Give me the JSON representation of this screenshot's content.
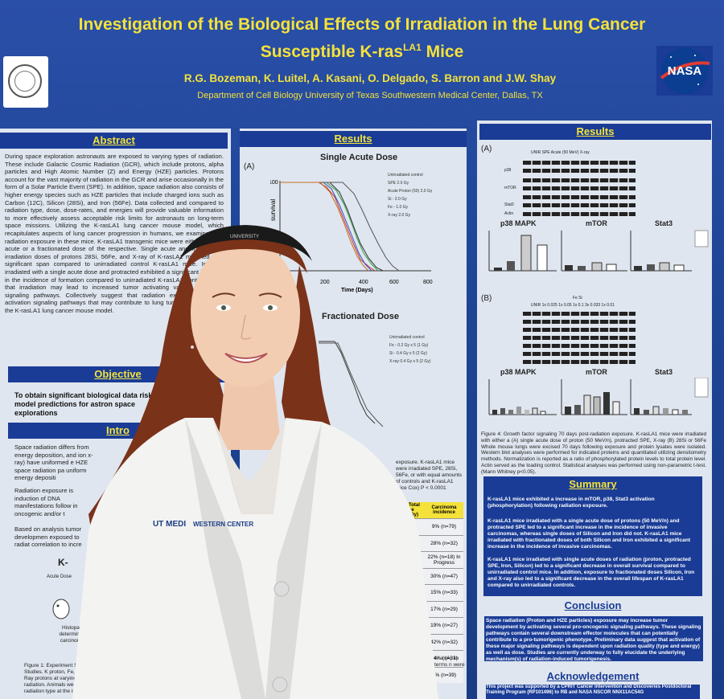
{
  "poster": {
    "title_line1": "Investigation of the Biological Effects of Irradiation in the Lung Cancer",
    "title_line2_pre": "Susceptible K-ras",
    "title_line2_sup": "LA1",
    "title_line2_post": " Mice",
    "authors": "R.G. Bozeman, K. Luitel, A. Kasani, O. Delgado, S. Barron and J.W. Shay",
    "department": "Department of Cell Biology University of Texas Southwestern Medical Center, Dallas, TX",
    "nasa_logo_text": "NASA"
  },
  "abstract": {
    "heading": "Abstract",
    "text": "During space exploration astronauts are exposed to varying types of radiation. These include Galactic Cosmic Radiation (GCR), which include protons, alpha particles and High Atomic Number (Z) and Energy (HZE) particles. Protons account for the vast majority of radiation in the GCR and arise occasionally in the form of a Solar Particle Event (SPE). In addition, space radiation also consists of higher energy species such as HZE particles that include charged ions such as Carbon (12C), Silicon (28Si), and Iron (56Fe). Data collected and compared to radiation type, dose, dose-rates, and energies will provide valuable information to more effectively assess acceptable risk limits for astronauts on long-term space missions. Utilizing the K-rasLA1 lung cancer mouse model, which recapitulates aspects of lung cancer progression in humans, we examined the radiation exposure in these mice. K-rasLA1 transgenic mice were either a single acute or a fractionated dose of the respective. Single acute and fractionated irradiation doses of protons 28Si, 56Fe, and X-ray of K-rasLA1 mice led to a significant span compared to unirradiated control K-rasLA1 mice. In mice irradiated with a single acute dose and protracted exhibited a significant increase in the incidence of formation compared to unirradiated K-rasLA1 controls show that irradiation may lead to increased tumor activating various mitogenic signaling pathways. Collectively suggest that radiation exposure leads to activation signaling pathways that may contribute to lung tumor progression in the K-rasLA1 lung cancer mouse model."
  },
  "objective": {
    "heading": "Objective",
    "text": "To obtain significant biological data risk model predictions for astron space explorations"
  },
  "introduction": {
    "heading": "Intro",
    "bullets": [
      "Space radiation differs from energy deposition, and ion x-ray) have uniformed e HZE space radiation pa uniform energy depositi",
      "Radiation exposure is induction of DNA manifestations follow in oncogenic and/or t",
      "Based on analysis tumor developmen exposed to radiat correlation to incre"
    ],
    "diagram_label": "K-",
    "acute_dose_label": "Acute Dose",
    "histo_text": "Histopa determine carcinom",
    "figure1_caption": "Figure 1: Experiment Simulation Studies. K proton, Fe, Si, or X-Ray protons at varying ener radiation. Animals were m radiation type at the indica"
  },
  "results_middle": {
    "heading": "Results",
    "panel_label": "(A)",
    "chart1_title": "Single Acute Dose",
    "chart1_ylabel": "survival",
    "chart1_xlabel": "Time (Days)",
    "chart2_title": "Fractionated Dose",
    "legend1": [
      "Unirradiated control",
      "SPE 2.0 Gy",
      "Acute Proton (50) 2.0 Gy",
      "Si - 2.0 Gy",
      "Fe - 1.0 Gy",
      "X-ray 2.0 Gy"
    ],
    "legend2": [
      "Unirradiated control",
      "Fe - 0.2 Gy x 5 (1 Gy)",
      "Si - 0.4 Gy x 5 (2 Gy)",
      "X-ray 0.4 Gy x 5 (2 Gy)"
    ],
    "caption_fragment": "exposure. K-rasLA1 mice were irradiated SPE, 28Si, 56Fe, or with equal amounts of controls and K-rasLA1 mice Cox) P < 0.0001",
    "table_headers": [
      "Total se (Gy)",
      "Carcinoma incidence"
    ],
    "table_rows": [
      "9% (n=79)",
      "28% (n=32)",
      "22% (n=18) In Progress",
      "30% (n=47)",
      "15% (n=33)",
      "17% (n=29)",
      "19% (n=27)",
      "42% (n=32)",
      "34% (n=31)",
      "9% (n=39)"
    ],
    "caption_bottom": "er a (A) lin terms n were"
  },
  "results_right": {
    "heading": "Results",
    "panel_a": "(A)",
    "panel_b": "(B)",
    "blot_header_a": "UNIR   SPE   Acute (50 MeV)   X-ray",
    "blot_labels": [
      "p38",
      "mTOR",
      "Stat3",
      "Actin"
    ],
    "bar_titles": [
      "p38 MAPK",
      "mTOR",
      "Stat3"
    ],
    "blot_header_b": "UNIR   1x 0.025  1x 0.05  1x 0.1  3x 0.033  1x 0.01",
    "blot_header_b_top": "Fe   Si",
    "figure4_caption": "Figure 4: Growth factor signaling 70 days post-radiation exposure. K-rasLA1 mice were irradiated with either a (A) single acute dose of proton (50 MeV/n), protracted SPE, X-ray (B) 28Si or 56Fe Whole mouse lungs were excised 70 days following exposure and protein lysates were isolated. Western blot analyses were performed for indicated proteins and quantitated utilizing densitometry methods. Normalization is reported as a ratio of phosphorylated protein levels to total protein level. Actin served as the loading control. Statistical analyses was performed using non-parametric t-test. (Mann Whitney p<0.05)."
  },
  "summary": {
    "heading": "Summary",
    "bullets": [
      "K-rasLA1 mice exhibited a increase in mTOR, p38, Stat3 activation (phosphorylation) following radiation exposure.",
      "K-rasLA1 mice irradiated with a single acute dose of protons (50 MeV/n) and protracted SPE led to a significant increase in the incidence of invasive carcinomas, whereas single doses of Silicon and Iron did not. K-rasLA1 mice irradiated with fractionated doses of both Silicon and Iron exhibited a significant increase in the incidence of invasive carcinomas.",
      "K-rasLA1 mice irradiated with single acute doses of radiation (proton, protracted SPE, Iron, Silicon) led to a significant decrease in overall survival compared to unirradiated control mice. In addition, exposure to fractionated doses Silicon, Iron and X-ray also led to a significant decrease in the overall lifespan of K-rasLA1 compared to unirradiated controls."
    ]
  },
  "conclusion": {
    "heading": "Conclusion",
    "text": "Space radiation (Proton and HZE particles) exposure may increase tumor development by activating several pro-oncogenic signaling pathways. These signaling pathways contain several downstream effector molecules that can potentially contribute to a pro-tumorigenic phenotype. Preliminary data suggest that activation of these major signaling pathways is dependent upon radiation quality (type and energy) as well as dose. Studies are currently underway to fully elucidate the underlying mechanism(s) of radiation-induced tumorigenesis."
  },
  "acknowledgement": {
    "heading": "Acknowledgement",
    "text": "This project was supported by a CPRIT Cancer Intervention and Discoveries Postdoctoral Training Program (RP101496) to RB and NASA NSCOR NNX11AC54G"
  },
  "chart_axis": {
    "ytick_top": "100",
    "xticks": [
      "200",
      "400",
      "600",
      "800"
    ]
  },
  "colors": {
    "poster_blue": "#1e4596",
    "header_blue": "#1a3c96",
    "title_yellow": "#f4e23a",
    "panel_bg": "#dfe6ef",
    "coat_white": "#f3f3f1",
    "hair": "#8a3a1f"
  },
  "person": {
    "headband_text": "UNIVERSITY",
    "coat_logo_left": "UT MEDI",
    "coat_logo_right": "WESTERN CENTER"
  }
}
